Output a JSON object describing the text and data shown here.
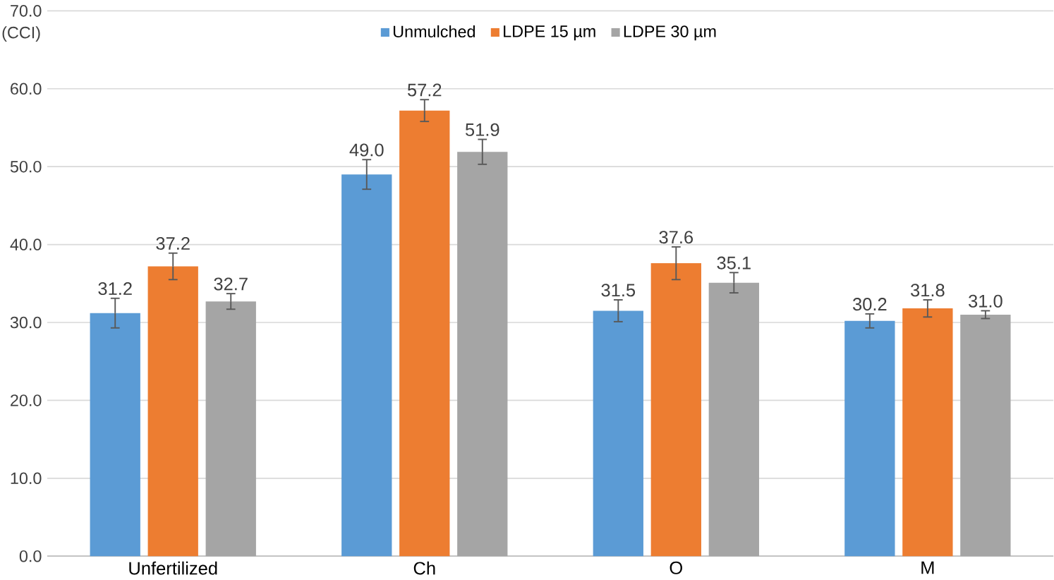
{
  "chart_data": {
    "type": "bar",
    "ylabel": "(CCI)",
    "categories": [
      "Unfertilized",
      "Ch",
      "O",
      "M"
    ],
    "series": [
      {
        "name": "Unmulched",
        "color": "#5b9bd5",
        "values": [
          31.2,
          49.0,
          31.5,
          30.2
        ],
        "value_labels": [
          "31.2",
          "49.0",
          "31.5",
          "30.2"
        ],
        "errors": [
          1.9,
          1.9,
          1.4,
          0.9
        ]
      },
      {
        "name": "LDPE 15 µm",
        "color": "#ed7d31",
        "values": [
          37.2,
          57.2,
          37.6,
          31.8
        ],
        "value_labels": [
          "37.2",
          "57.2",
          "37.6",
          "31.8"
        ],
        "errors": [
          1.7,
          1.4,
          2.1,
          1.1
        ]
      },
      {
        "name": "LDPE 30 µm",
        "color": "#a5a5a5",
        "values": [
          32.7,
          51.9,
          35.1,
          31.0
        ],
        "value_labels": [
          "32.7",
          "51.9",
          "35.1",
          "31.0"
        ],
        "errors": [
          1.0,
          1.6,
          1.3,
          0.5
        ]
      }
    ],
    "ylim": [
      0,
      70
    ],
    "yticks": [
      {
        "value": 0,
        "label": "0.0"
      },
      {
        "value": 10,
        "label": "10.0"
      },
      {
        "value": 20,
        "label": "20.0"
      },
      {
        "value": 30,
        "label": "30.0"
      },
      {
        "value": 40,
        "label": "40.0"
      },
      {
        "value": 50,
        "label": "50.0"
      },
      {
        "value": 60,
        "label": "60.0"
      },
      {
        "value": 70,
        "label": "70.0"
      }
    ],
    "grid": "y",
    "legend": "top"
  }
}
